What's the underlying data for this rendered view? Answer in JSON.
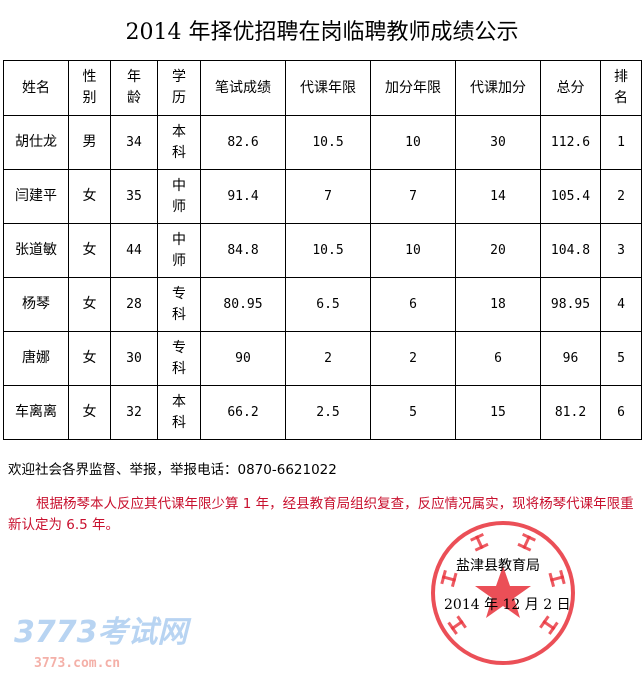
{
  "title": "2014 年择优招聘在岗临聘教师成绩公示",
  "headers": [
    "姓名",
    "性别",
    "年龄",
    "学历",
    "笔试成绩",
    "代课年限",
    "加分年限",
    "代课加分",
    "总分",
    "排名"
  ],
  "rows": [
    [
      "胡仕龙",
      "男",
      "34",
      "本科",
      "82.6",
      "10.5",
      "10",
      "30",
      "112.6",
      "1"
    ],
    [
      "闫建平",
      "女",
      "35",
      "中师",
      "91.4",
      "7",
      "7",
      "14",
      "105.4",
      "2"
    ],
    [
      "张道敏",
      "女",
      "44",
      "中师",
      "84.8",
      "10.5",
      "10",
      "20",
      "104.8",
      "3"
    ],
    [
      "杨琴",
      "女",
      "28",
      "专科",
      "80.95",
      "6.5",
      "6",
      "18",
      "98.95",
      "4"
    ],
    [
      "唐娜",
      "女",
      "30",
      "专科",
      "90",
      "2",
      "2",
      "6",
      "96",
      "5"
    ],
    [
      "车离离",
      "女",
      "32",
      "本科",
      "66.2",
      "2.5",
      "5",
      "15",
      "81.2",
      "6"
    ]
  ],
  "report": "欢迎社会各界监督、举报，举报电话：0870-6621022",
  "notice": "根据杨琴本人反应其代课年限少算 1 年，经县教育局组织复查，反应情况属实，现将杨琴代课年限重新认定为 6.5 年。",
  "org": "盐津县教育局",
  "date": "2014 年 12 月 2 日",
  "seal": {
    "text": "盐津县教育局",
    "color": "#e8303a"
  },
  "watermark": {
    "logo": "3773考试网",
    "url": "3773.com.cn"
  }
}
